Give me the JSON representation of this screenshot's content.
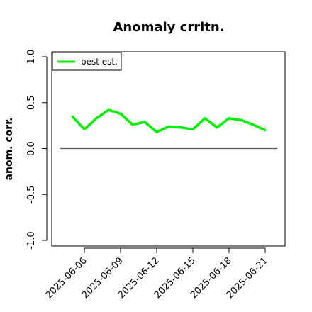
{
  "chart_data": {
    "type": "line",
    "title": "Anomaly crrltn.",
    "xlabel": "",
    "ylabel": "anom. corr.",
    "ylim": [
      -1.0,
      1.0
    ],
    "yticks": [
      "-1.0",
      "-0.5",
      "0.0",
      "0.5",
      "1.0"
    ],
    "xrange": [
      "2025-06-04",
      "2025-06-22"
    ],
    "xticks": [
      "2025-06-06",
      "2025-06-09",
      "2025-06-12",
      "2025-06-15",
      "2025-06-18",
      "2025-06-21"
    ],
    "grid": false,
    "legend_position": "top-left",
    "reference_line": 0.0,
    "series": [
      {
        "name": "best est.",
        "color": "#00ee00",
        "x": [
          "2025-06-05",
          "2025-06-06",
          "2025-06-07",
          "2025-06-08",
          "2025-06-09",
          "2025-06-10",
          "2025-06-11",
          "2025-06-12",
          "2025-06-13",
          "2025-06-14",
          "2025-06-15",
          "2025-06-16",
          "2025-06-17",
          "2025-06-18",
          "2025-06-19",
          "2025-06-20",
          "2025-06-21"
        ],
        "values": [
          0.35,
          0.21,
          0.33,
          0.42,
          0.38,
          0.26,
          0.29,
          0.18,
          0.24,
          0.23,
          0.21,
          0.33,
          0.23,
          0.33,
          0.31,
          0.26,
          0.2
        ]
      }
    ],
    "reference_color": "#555555"
  }
}
